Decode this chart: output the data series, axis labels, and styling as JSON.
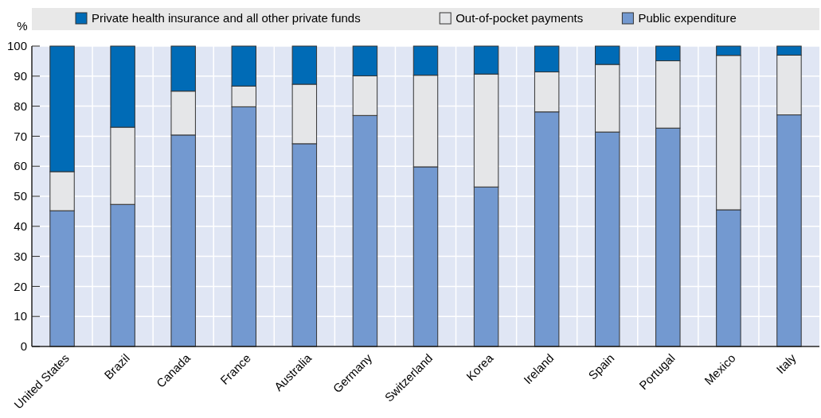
{
  "chart_data": {
    "type": "bar",
    "stacked": true,
    "ylabel": "%",
    "categories": [
      "United States",
      "Brazil",
      "Canada",
      "France",
      "Australia",
      "Germany",
      "Switzerland",
      "Korea",
      "Ireland",
      "Spain",
      "Portugal",
      "Mexico",
      "Italy"
    ],
    "series": [
      {
        "name": "Public expenditure",
        "color": "#7399d0",
        "values": [
          45.2,
          47.3,
          70.4,
          79.8,
          67.5,
          76.9,
          59.8,
          53.1,
          78.1,
          71.4,
          72.7,
          45.5,
          77.1
        ]
      },
      {
        "name": "Out-of-pocket payments",
        "color": "#e5e6e8",
        "values": [
          13,
          25.7,
          14.6,
          6.9,
          19.8,
          13.2,
          30.5,
          37.6,
          13.3,
          22.5,
          22.4,
          51.4,
          19.9
        ]
      },
      {
        "name": "Private health insurance and all other private funds",
        "color": "#006bb6",
        "values": [
          41.8,
          27,
          15,
          13.3,
          12.7,
          9.9,
          9.7,
          9.3,
          8.6,
          6.1,
          4.9,
          3.1,
          3
        ]
      }
    ],
    "ylim": [
      0,
      100
    ],
    "yticks": [
      0,
      10,
      20,
      30,
      40,
      50,
      60,
      70,
      80,
      90,
      100
    ],
    "grid": true,
    "legend": "top"
  }
}
